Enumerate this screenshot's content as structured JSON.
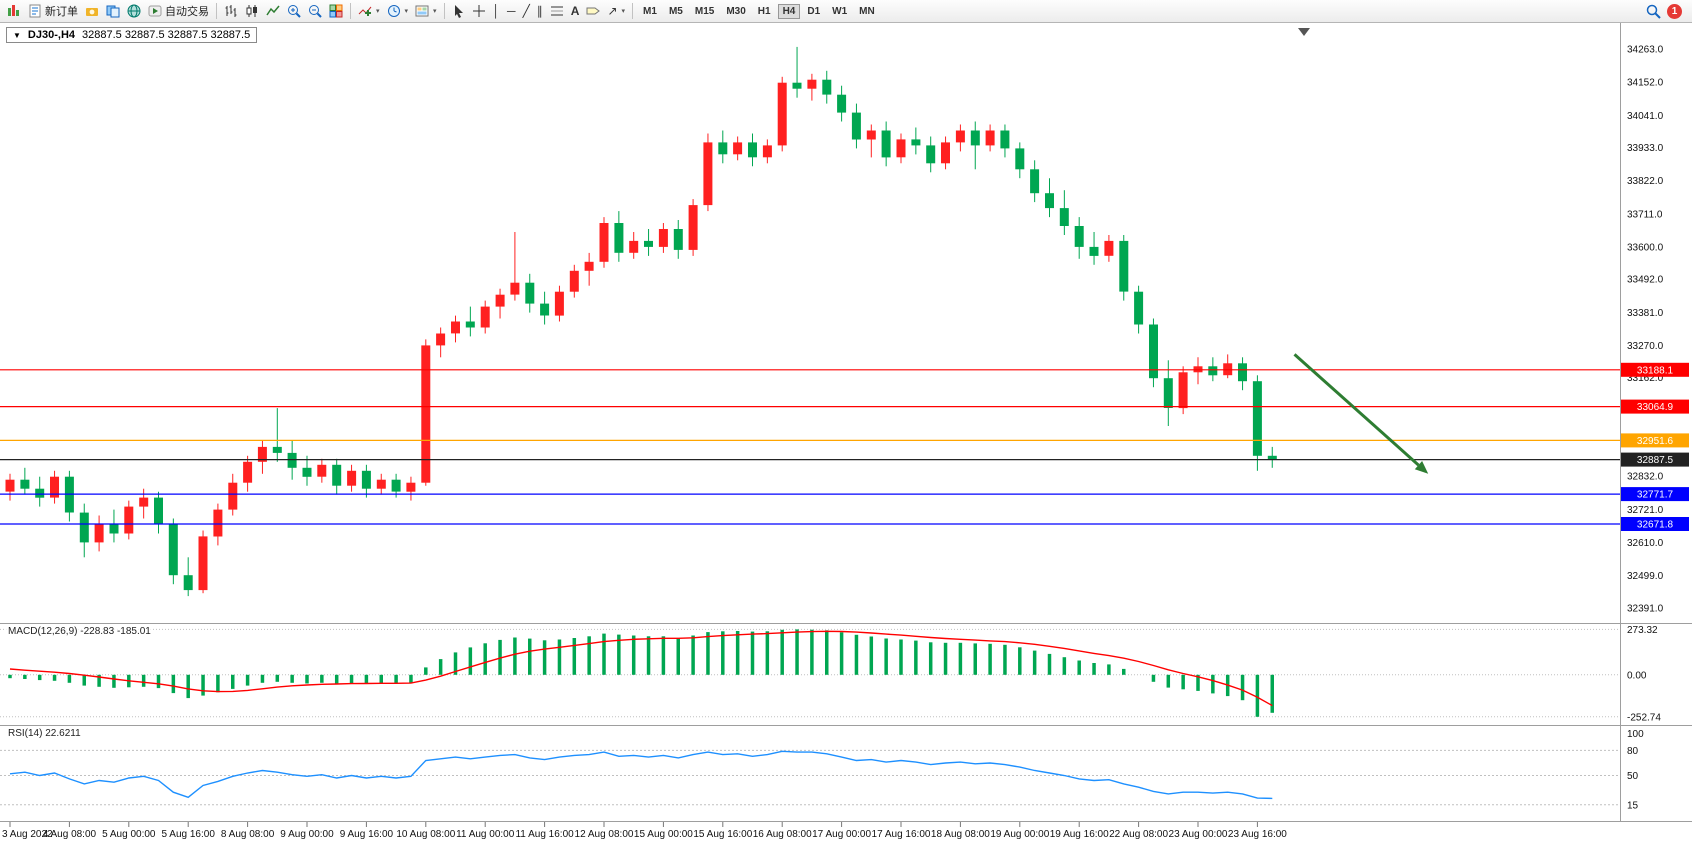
{
  "toolbar": {
    "new_order_label": "新订单",
    "autotrading_label": "自动交易",
    "timeframes": [
      "M1",
      "M5",
      "M15",
      "M30",
      "H1",
      "H4",
      "D1",
      "W1",
      "MN"
    ],
    "active_timeframe": "H4",
    "notification_count": "1"
  },
  "chart": {
    "symbol_title": "DJ30-,H4",
    "ohlc_text": "32887.5 32887.5 32887.5 32887.5"
  },
  "chart_data": {
    "type": "candlestick",
    "symbol": "DJ30-",
    "timeframe": "H4",
    "up_color": "#ff2020",
    "down_color": "#00a651",
    "price_axis": {
      "view_min": 32340,
      "view_max": 34330,
      "labels": [
        34263,
        34152,
        34041,
        33933,
        33822,
        33711,
        33600,
        33492,
        33381,
        33270,
        33162,
        32832,
        32721,
        32610,
        32499,
        32391
      ]
    },
    "levels": [
      {
        "price": 33188.1,
        "label": "33188.1",
        "color": "#ff0000"
      },
      {
        "price": 33064.9,
        "label": "33064.9",
        "color": "#ff0000"
      },
      {
        "price": 32951.6,
        "label": "32951.6",
        "color": "#ffa500"
      },
      {
        "price": 32887.5,
        "label": "32887.5",
        "color": "#222222"
      },
      {
        "price": 32771.7,
        "label": "32771.7",
        "color": "#0000ff"
      },
      {
        "price": 32671.8,
        "label": "32671.8",
        "color": "#0000ff"
      }
    ],
    "trend_arrow": {
      "x1_bar": 86.5,
      "p1": 33240,
      "x2_bar": 95.5,
      "p2": 32840,
      "color": "#2e7d32"
    },
    "candles": [
      [
        32780,
        32840,
        32750,
        32820
      ],
      [
        32820,
        32860,
        32770,
        32790
      ],
      [
        32790,
        32830,
        32730,
        32760
      ],
      [
        32760,
        32850,
        32740,
        32830
      ],
      [
        32830,
        32850,
        32680,
        32710
      ],
      [
        32710,
        32740,
        32560,
        32610
      ],
      [
        32610,
        32700,
        32580,
        32670
      ],
      [
        32670,
        32720,
        32610,
        32640
      ],
      [
        32640,
        32750,
        32620,
        32730
      ],
      [
        32730,
        32790,
        32690,
        32760
      ],
      [
        32760,
        32780,
        32640,
        32670
      ],
      [
        32670,
        32690,
        32470,
        32500
      ],
      [
        32500,
        32560,
        32430,
        32450
      ],
      [
        32450,
        32650,
        32440,
        32630
      ],
      [
        32630,
        32740,
        32600,
        32720
      ],
      [
        32720,
        32840,
        32700,
        32810
      ],
      [
        32810,
        32900,
        32780,
        32880
      ],
      [
        32880,
        32950,
        32840,
        32930
      ],
      [
        32930,
        33060,
        32880,
        32910
      ],
      [
        32910,
        32950,
        32820,
        32860
      ],
      [
        32860,
        32900,
        32800,
        32830
      ],
      [
        32830,
        32890,
        32810,
        32870
      ],
      [
        32870,
        32890,
        32770,
        32800
      ],
      [
        32800,
        32870,
        32780,
        32850
      ],
      [
        32850,
        32870,
        32760,
        32790
      ],
      [
        32790,
        32840,
        32770,
        32820
      ],
      [
        32820,
        32840,
        32760,
        32780
      ],
      [
        32780,
        32830,
        32750,
        32810
      ],
      [
        32810,
        33290,
        32800,
        33270
      ],
      [
        33270,
        33330,
        33230,
        33310
      ],
      [
        33310,
        33370,
        33280,
        33350
      ],
      [
        33350,
        33400,
        33300,
        33330
      ],
      [
        33330,
        33420,
        33310,
        33400
      ],
      [
        33400,
        33460,
        33360,
        33440
      ],
      [
        33440,
        33650,
        33420,
        33480
      ],
      [
        33480,
        33510,
        33380,
        33410
      ],
      [
        33410,
        33450,
        33340,
        33370
      ],
      [
        33370,
        33470,
        33350,
        33450
      ],
      [
        33450,
        33540,
        33430,
        33520
      ],
      [
        33520,
        33580,
        33470,
        33550
      ],
      [
        33550,
        33700,
        33530,
        33680
      ],
      [
        33680,
        33720,
        33550,
        33580
      ],
      [
        33580,
        33650,
        33560,
        33620
      ],
      [
        33620,
        33660,
        33570,
        33600
      ],
      [
        33600,
        33680,
        33580,
        33660
      ],
      [
        33660,
        33690,
        33560,
        33590
      ],
      [
        33590,
        33760,
        33570,
        33740
      ],
      [
        33740,
        33980,
        33720,
        33950
      ],
      [
        33950,
        33990,
        33880,
        33910
      ],
      [
        33910,
        33970,
        33890,
        33950
      ],
      [
        33950,
        33980,
        33870,
        33900
      ],
      [
        33900,
        33960,
        33880,
        33940
      ],
      [
        33940,
        34170,
        33920,
        34150
      ],
      [
        34150,
        34270,
        34100,
        34130
      ],
      [
        34130,
        34180,
        34090,
        34160
      ],
      [
        34160,
        34190,
        34080,
        34110
      ],
      [
        34110,
        34140,
        34020,
        34050
      ],
      [
        34050,
        34080,
        33930,
        33960
      ],
      [
        33960,
        34010,
        33900,
        33990
      ],
      [
        33990,
        34020,
        33870,
        33900
      ],
      [
        33900,
        33980,
        33880,
        33960
      ],
      [
        33960,
        34000,
        33910,
        33940
      ],
      [
        33940,
        33970,
        33850,
        33880
      ],
      [
        33880,
        33970,
        33860,
        33950
      ],
      [
        33950,
        34010,
        33920,
        33990
      ],
      [
        33990,
        34020,
        33860,
        33940
      ],
      [
        33940,
        34010,
        33920,
        33990
      ],
      [
        33990,
        34010,
        33900,
        33930
      ],
      [
        33930,
        33950,
        33830,
        33860
      ],
      [
        33860,
        33890,
        33750,
        33780
      ],
      [
        33780,
        33830,
        33700,
        33730
      ],
      [
        33730,
        33790,
        33640,
        33670
      ],
      [
        33670,
        33700,
        33560,
        33600
      ],
      [
        33600,
        33650,
        33540,
        33570
      ],
      [
        33570,
        33640,
        33550,
        33620
      ],
      [
        33620,
        33640,
        33420,
        33450
      ],
      [
        33450,
        33470,
        33310,
        33340
      ],
      [
        33340,
        33360,
        33130,
        33160
      ],
      [
        33160,
        33220,
        33000,
        33060
      ],
      [
        33060,
        33200,
        33040,
        33180
      ],
      [
        33180,
        33230,
        33140,
        33200
      ],
      [
        33200,
        33230,
        33150,
        33170
      ],
      [
        33170,
        33240,
        33160,
        33210
      ],
      [
        33210,
        33230,
        33120,
        33150
      ],
      [
        33150,
        33170,
        32850,
        32900
      ],
      [
        32900,
        32930,
        32860,
        32887.5
      ]
    ],
    "time_labels": [
      {
        "bar": 0,
        "text": "3 Aug 2022"
      },
      {
        "bar": 4,
        "text": "4 Aug 08:00"
      },
      {
        "bar": 8,
        "text": "5 Aug 00:00"
      },
      {
        "bar": 12,
        "text": "5 Aug 16:00"
      },
      {
        "bar": 16,
        "text": "8 Aug 08:00"
      },
      {
        "bar": 20,
        "text": "9 Aug 00:00"
      },
      {
        "bar": 24,
        "text": "9 Aug 16:00"
      },
      {
        "bar": 28,
        "text": "10 Aug 08:00"
      },
      {
        "bar": 32,
        "text": "11 Aug 00:00"
      },
      {
        "bar": 36,
        "text": "11 Aug 16:00"
      },
      {
        "bar": 40,
        "text": "12 Aug 08:00"
      },
      {
        "bar": 44,
        "text": "15 Aug 00:00"
      },
      {
        "bar": 48,
        "text": "15 Aug 16:00"
      },
      {
        "bar": 52,
        "text": "16 Aug 08:00"
      },
      {
        "bar": 56,
        "text": "17 Aug 00:00"
      },
      {
        "bar": 60,
        "text": "17 Aug 16:00"
      },
      {
        "bar": 64,
        "text": "18 Aug 08:00"
      },
      {
        "bar": 68,
        "text": "19 Aug 00:00"
      },
      {
        "bar": 72,
        "text": "19 Aug 16:00"
      },
      {
        "bar": 76,
        "text": "22 Aug 08:00"
      },
      {
        "bar": 80,
        "text": "23 Aug 00:00"
      },
      {
        "bar": 84,
        "text": "23 Aug 16:00"
      }
    ],
    "macd": {
      "label": "MACD(12,26,9) -228.83 -185.01",
      "hist_color": "#00a651",
      "signal_color": "#ff0000",
      "axis": [
        {
          "v": 273.32,
          "label": "273.32"
        },
        {
          "v": 0,
          "label": "0.00"
        },
        {
          "v": -252.74,
          "label": "-252.74"
        }
      ],
      "histogram": [
        -20,
        -25,
        -32,
        -36,
        -48,
        -65,
        -72,
        -78,
        -75,
        -72,
        -80,
        -110,
        -140,
        -125,
        -105,
        -85,
        -65,
        -48,
        -42,
        -48,
        -52,
        -48,
        -52,
        -49,
        -53,
        -50,
        -52,
        -50,
        45,
        95,
        135,
        165,
        190,
        210,
        225,
        218,
        208,
        213,
        222,
        232,
        248,
        242,
        237,
        232,
        232,
        222,
        237,
        257,
        262,
        264,
        260,
        262,
        271,
        273.32,
        272,
        268,
        256,
        241,
        231,
        219,
        213,
        206,
        196,
        193,
        193,
        189,
        187,
        181,
        166,
        146,
        126,
        106,
        86,
        71,
        63,
        36,
        0,
        -42,
        -77,
        -87,
        -97,
        -112,
        -128,
        -153,
        -252.74,
        -228.83
      ],
      "signal": [
        35,
        28,
        22,
        16,
        8,
        -2,
        -13,
        -25,
        -36,
        -45,
        -54,
        -68,
        -85,
        -96,
        -101,
        -100,
        -94,
        -84,
        -74,
        -66,
        -61,
        -57,
        -55,
        -53,
        -52,
        -51,
        -51,
        -50,
        -32,
        -8,
        20,
        48,
        75,
        101,
        124,
        142,
        155,
        166,
        177,
        188,
        200,
        208,
        214,
        217,
        220,
        220,
        223,
        230,
        236,
        241,
        245,
        248,
        253,
        257,
        260,
        262,
        261,
        257,
        252,
        245,
        239,
        232,
        225,
        219,
        214,
        209,
        204,
        200,
        193,
        184,
        172,
        159,
        144,
        129,
        116,
        100,
        80,
        56,
        30,
        8,
        -12,
        -35,
        -62,
        -92,
        -135,
        -185.01
      ]
    },
    "rsi": {
      "label": "RSI(14) 22.6211",
      "color": "#1e90ff",
      "axis": [
        {
          "v": 100,
          "label": "100"
        },
        {
          "v": 80,
          "label": "80"
        },
        {
          "v": 50,
          "label": "50"
        },
        {
          "v": 15,
          "label": "15"
        }
      ],
      "level_lines": [
        80,
        50,
        15
      ],
      "values": [
        52,
        54,
        50,
        53,
        46,
        40,
        44,
        42,
        47,
        49,
        44,
        30,
        24,
        38,
        43,
        49,
        53,
        56,
        54,
        51,
        49,
        51,
        47,
        50,
        47,
        49,
        47,
        49,
        68,
        70,
        72,
        70,
        72,
        74,
        75,
        71,
        69,
        72,
        74,
        75,
        78,
        73,
        74,
        72,
        74,
        71,
        75,
        78,
        75,
        76,
        73,
        75,
        79,
        78,
        78,
        76,
        72,
        68,
        69,
        66,
        68,
        66,
        63,
        65,
        66,
        64,
        65,
        63,
        60,
        56,
        53,
        50,
        46,
        44,
        45,
        40,
        36,
        31,
        28,
        30,
        30,
        29,
        30,
        28,
        23,
        22.6211
      ]
    }
  }
}
